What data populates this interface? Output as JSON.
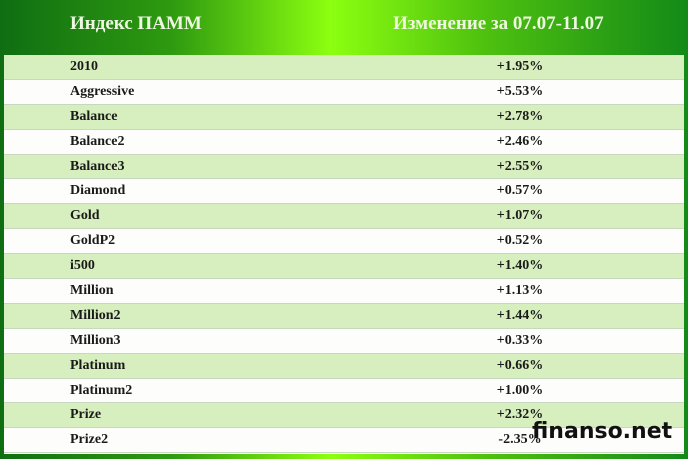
{
  "header": {
    "col1": "Индекс ПАММ",
    "col2": "Изменение за 07.07-11.07"
  },
  "rows": [
    {
      "name": "2010",
      "change": "+1.95%"
    },
    {
      "name": "Aggressive",
      "change": "+5.53%"
    },
    {
      "name": "Balance",
      "change": "+2.78%"
    },
    {
      "name": "Balance2",
      "change": "+2.46%"
    },
    {
      "name": "Balance3",
      "change": "+2.55%"
    },
    {
      "name": "Diamond",
      "change": "+0.57%"
    },
    {
      "name": "Gold",
      "change": "+1.07%"
    },
    {
      "name": "GoldP2",
      "change": "+0.52%"
    },
    {
      "name": "i500",
      "change": "+1.40%"
    },
    {
      "name": "Million",
      "change": "+1.13%"
    },
    {
      "name": "Million2",
      "change": "+1.44%"
    },
    {
      "name": "Million3",
      "change": "+0.33%"
    },
    {
      "name": "Platinum",
      "change": "+0.66%"
    },
    {
      "name": "Platinum2",
      "change": "+1.00%"
    },
    {
      "name": "Prize",
      "change": "+2.32%"
    },
    {
      "name": "Prize2",
      "change": "-2.35%"
    }
  ],
  "watermark": "finanso.net",
  "colors": {
    "header_green": "#2e9a10",
    "row_light_green": "#d7efbe"
  }
}
